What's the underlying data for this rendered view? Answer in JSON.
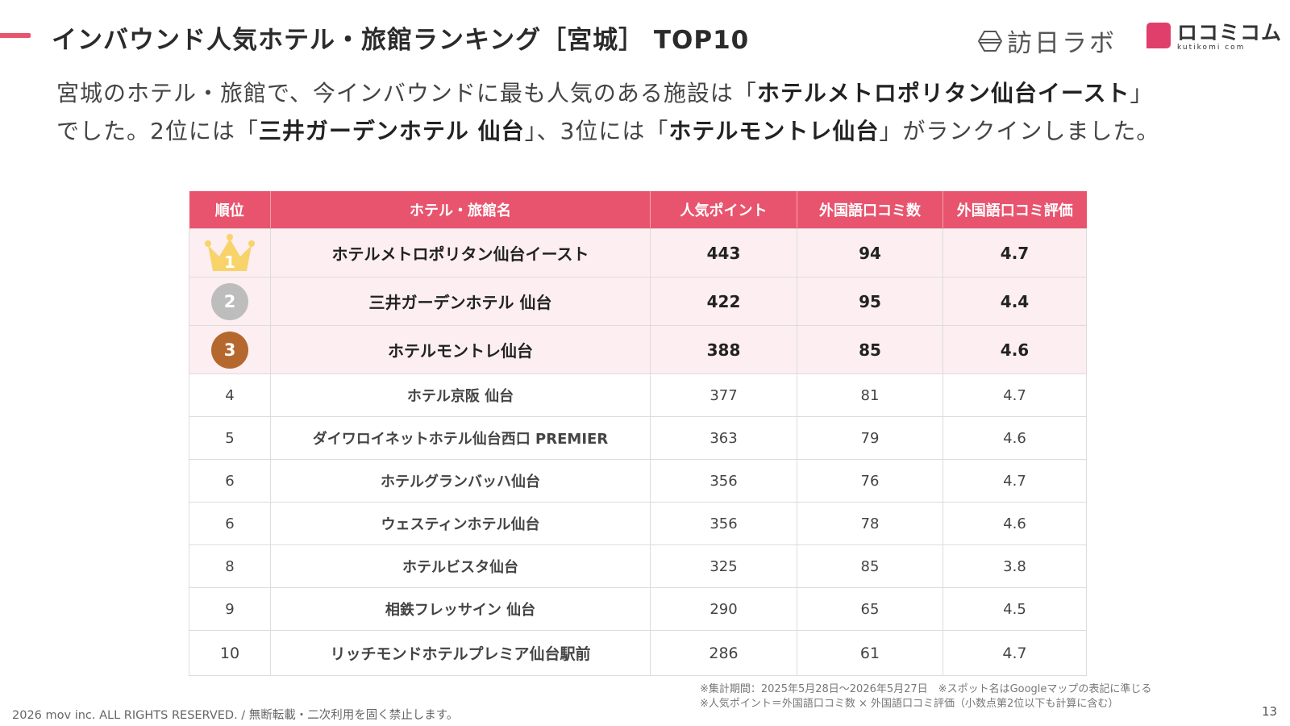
{
  "header": {
    "title": "インバウンド人気ホテル・旅館ランキング［宮城］ TOP10",
    "logo_houni": "訪日ラボ",
    "logo_kuti_jp": "ロコミコム",
    "logo_kuti_en": "kutikomi com",
    "accent_color": "#e8546e"
  },
  "lead": {
    "line1_a": "宮城のホテル・旅館で、今インバウンドに最も人気のある施設は「",
    "line1_bold": "ホテルメトロポリタン仙台イースト",
    "line1_b": "」",
    "line2_a": "でした。2位には「",
    "line2_bold1": "三井ガーデンホテル 仙台",
    "line2_b": "」、3位には「",
    "line2_bold2": "ホテルモントレ仙台",
    "line2_c": "」がランクインしました。"
  },
  "table": {
    "headers": [
      "順位",
      "ホテル・旅館名",
      "人気ポイント",
      "外国語口コミ数",
      "外国語口コミ評価"
    ],
    "rows": [
      {
        "rank": "1",
        "name": "ホテルメトロポリタン仙台イースト",
        "points": "443",
        "reviews": "94",
        "rating": "4.7"
      },
      {
        "rank": "2",
        "name": "三井ガーデンホテル 仙台",
        "points": "422",
        "reviews": "95",
        "rating": "4.4"
      },
      {
        "rank": "3",
        "name": "ホテルモントレ仙台",
        "points": "388",
        "reviews": "85",
        "rating": "4.6"
      },
      {
        "rank": "4",
        "name": "ホテル京阪 仙台",
        "points": "377",
        "reviews": "81",
        "rating": "4.7"
      },
      {
        "rank": "5",
        "name": "ダイワロイネットホテル仙台西口 PREMIER",
        "points": "363",
        "reviews": "79",
        "rating": "4.6"
      },
      {
        "rank": "6",
        "name": "ホテルグランバッハ仙台",
        "points": "356",
        "reviews": "76",
        "rating": "4.7"
      },
      {
        "rank": "6",
        "name": "ウェスティンホテル仙台",
        "points": "356",
        "reviews": "78",
        "rating": "4.6"
      },
      {
        "rank": "8",
        "name": "ホテルビスタ仙台",
        "points": "325",
        "reviews": "85",
        "rating": "3.8"
      },
      {
        "rank": "9",
        "name": "相鉄フレッサイン 仙台",
        "points": "290",
        "reviews": "65",
        "rating": "4.5"
      },
      {
        "rank": "10",
        "name": "リッチモンドホテルプレミア仙台駅前",
        "points": "286",
        "reviews": "61",
        "rating": "4.7"
      }
    ]
  },
  "notes": {
    "line1": "※集計期間：2025年5月28日〜2026年5月27日　※スポット名はGoogleマップの表記に準じる",
    "line2": "※人気ポイント＝外国語口コミ数 × 外国語口コミ評価（小数点第2位以下も計算に含む）"
  },
  "footer": {
    "copyright": "2026 mov inc. ALL RIGHTS RESERVED. / 無断転載・二次利用を固く禁止します。",
    "page_number": "13"
  }
}
